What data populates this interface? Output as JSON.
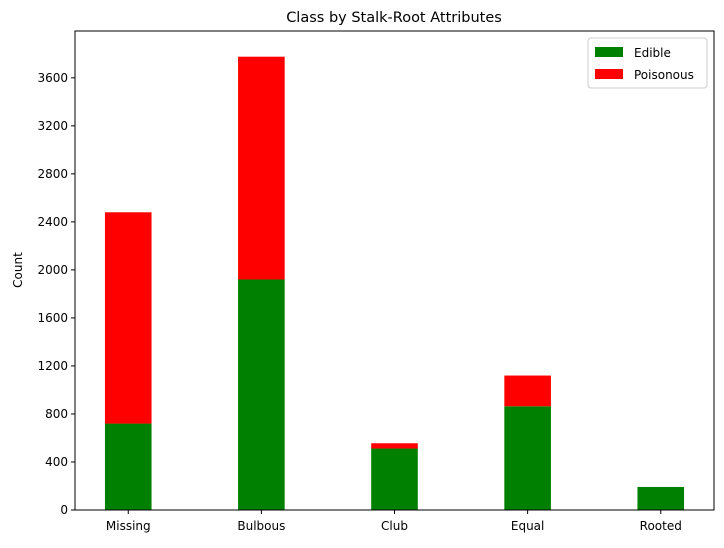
{
  "chart_data": {
    "type": "bar",
    "stacked": true,
    "title": "Class by Stalk-Root Attributes",
    "xlabel": "",
    "ylabel": "Count",
    "categories": [
      "Missing",
      "Bulbous",
      "Club",
      "Equal",
      "Rooted"
    ],
    "series": [
      {
        "name": "Edible",
        "color": "#008000",
        "values": [
          720,
          1920,
          512,
          864,
          192
        ]
      },
      {
        "name": "Poisonous",
        "color": "#ff0000",
        "values": [
          1760,
          1856,
          44,
          256,
          0
        ]
      }
    ],
    "ylim": [
      0,
      3990
    ],
    "yticks": [
      0,
      400,
      800,
      1200,
      1600,
      2000,
      2400,
      2800,
      3200,
      3600
    ],
    "grid": false,
    "legend_position": "top-right"
  }
}
